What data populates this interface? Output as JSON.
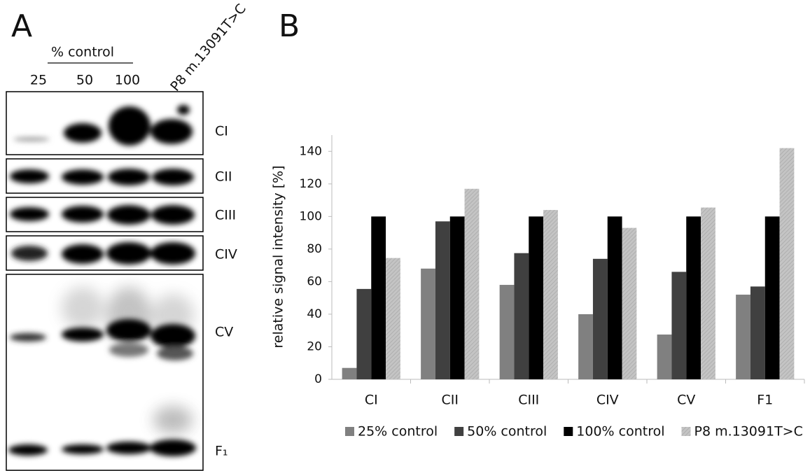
{
  "panel_a": {
    "label": "A",
    "group_label": "% control",
    "lanes": [
      "25",
      "50",
      "100",
      "P8 m.13091T>C"
    ],
    "rows": [
      "CI",
      "CII",
      "CIII",
      "CIV",
      "CV",
      "F₁"
    ]
  },
  "chart_data": {
    "type": "bar",
    "panel_label": "B",
    "y_label": "relative signal intensity [%]",
    "categories": [
      "CI",
      "CII",
      "CIII",
      "CIV",
      "CV",
      "F1"
    ],
    "series": [
      {
        "name": "25% control",
        "color": "#808080",
        "values": [
          7,
          68,
          58,
          40,
          27.5,
          52
        ]
      },
      {
        "name": "50% control",
        "color": "#404040",
        "values": [
          55.5,
          97,
          77.5,
          74,
          66,
          57
        ]
      },
      {
        "name": "100% control",
        "color": "#000000",
        "values": [
          100,
          100,
          100,
          100,
          100,
          100
        ]
      },
      {
        "name": "P8 m.13091T>C",
        "color": "#b8b8b8",
        "values": [
          74.5,
          117,
          104,
          93,
          105.5,
          142
        ]
      }
    ],
    "ylim": [
      0,
      150
    ],
    "yticks": [
      0,
      20,
      40,
      60,
      80,
      100,
      120,
      140
    ],
    "grid": false,
    "legend": "bottom"
  }
}
